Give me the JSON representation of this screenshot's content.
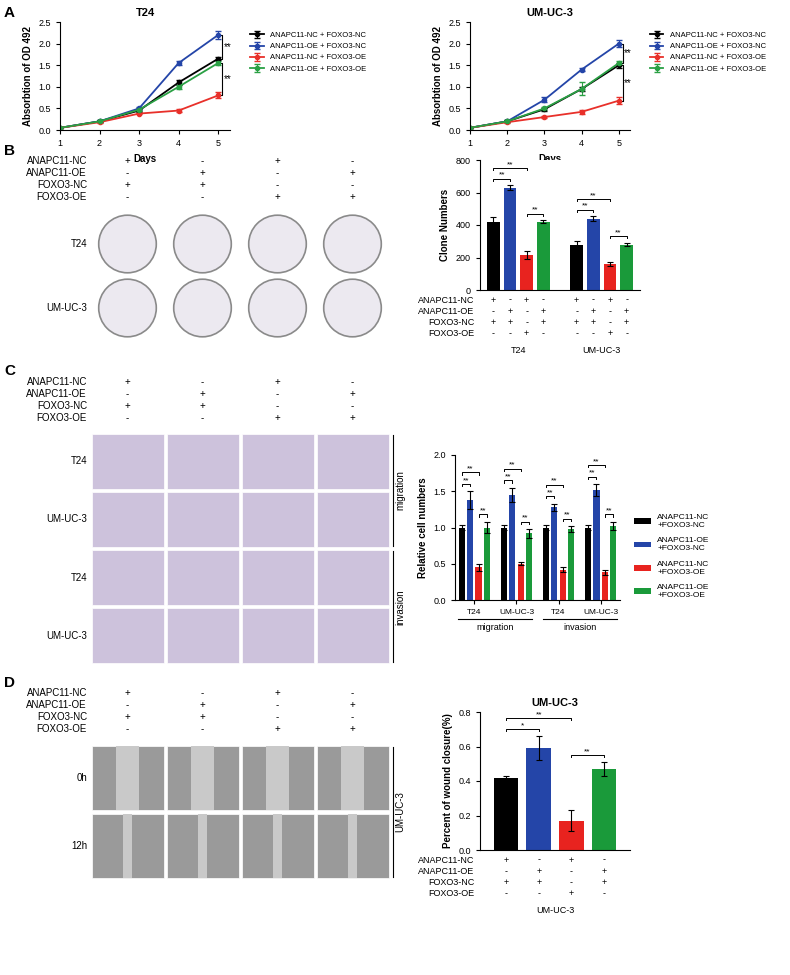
{
  "panel_labels": [
    "A",
    "B",
    "C",
    "D"
  ],
  "chart_data": [
    {
      "type": "line",
      "title": "T24",
      "x_label": "Days",
      "y_label": "Absorbtion of OD 492",
      "x": [
        1,
        2,
        3,
        4,
        5
      ],
      "xlim": [
        1,
        5.3
      ],
      "xticks": [
        1,
        2,
        3,
        4,
        5
      ],
      "ylim": [
        0,
        2.5
      ],
      "yticks": [
        {
          "value": 0,
          "label": "0.0"
        },
        0.5,
        {
          "value": 1,
          "label": "1.0"
        },
        1.5,
        {
          "value": 2,
          "label": "2.0"
        },
        2.5
      ],
      "marker": "circle",
      "legend": "right",
      "series": [
        {
          "name": "ANAPC11-NC + FOXO3-NC",
          "color": "#000000",
          "values": [
            0.05,
            0.2,
            0.45,
            1.1,
            1.65
          ],
          "errors": [
            0.01,
            0.02,
            0.03,
            0.05,
            0.04
          ]
        },
        {
          "name": "ANAPC11-OE + FOXO3-NC",
          "color": "#2445a8",
          "values": [
            0.05,
            0.2,
            0.5,
            1.55,
            2.2
          ],
          "errors": [
            0.01,
            0.02,
            0.03,
            0.04,
            0.1
          ]
        },
        {
          "name": "ANAPC11-NC + FOXO3-OE",
          "color": "#e8302a",
          "values": [
            0.05,
            0.18,
            0.38,
            0.45,
            0.8
          ],
          "errors": [
            0.01,
            0.02,
            0.02,
            0.03,
            0.07
          ]
        },
        {
          "name": "ANAPC11-OE + FOXO3-OE",
          "color": "#2aa044",
          "values": [
            0.05,
            0.2,
            0.47,
            1.0,
            1.55
          ],
          "errors": [
            0.01,
            0.02,
            0.03,
            0.04,
            0.05
          ]
        }
      ],
      "significance": [
        {
          "series": [
            1,
            0
          ],
          "label": "**"
        },
        {
          "series": [
            3,
            2
          ],
          "label": "**"
        }
      ]
    },
    {
      "type": "line",
      "title": "UM-UC-3",
      "x_label": "Days",
      "y_label": "Absorbtion of OD 492",
      "x": [
        1,
        2,
        3,
        4,
        5
      ],
      "xlim": [
        1,
        5.3
      ],
      "xticks": [
        1,
        2,
        3,
        4,
        5
      ],
      "ylim": [
        0,
        2.5
      ],
      "yticks": [
        {
          "value": 0,
          "label": "0.0"
        },
        0.5,
        {
          "value": 1,
          "label": "1.0"
        },
        1.5,
        {
          "value": 2,
          "label": "2.0"
        },
        2.5
      ],
      "marker": "circle",
      "legend": "right",
      "series": [
        {
          "name": "ANAPC11-NC + FOXO3-NC",
          "color": "#000000",
          "values": [
            0.05,
            0.2,
            0.48,
            0.95,
            1.5
          ],
          "errors": [
            0.01,
            0.02,
            0.03,
            0.05,
            0.06
          ]
        },
        {
          "name": "ANAPC11-OE + FOXO3-NC",
          "color": "#2445a8",
          "values": [
            0.05,
            0.2,
            0.7,
            1.4,
            2.0
          ],
          "errors": [
            0.01,
            0.02,
            0.06,
            0.04,
            0.08
          ]
        },
        {
          "name": "ANAPC11-NC + FOXO3-OE",
          "color": "#e8302a",
          "values": [
            0.05,
            0.18,
            0.3,
            0.42,
            0.68
          ],
          "errors": [
            0.01,
            0.02,
            0.02,
            0.05,
            0.08
          ]
        },
        {
          "name": "ANAPC11-OE + FOXO3-OE",
          "color": "#2aa044",
          "values": [
            0.05,
            0.2,
            0.5,
            0.95,
            1.55
          ],
          "errors": [
            0.01,
            0.02,
            0.03,
            0.15,
            0.05
          ]
        }
      ],
      "significance": [
        {
          "series": [
            1,
            3
          ],
          "label": "**"
        },
        {
          "series": [
            0,
            2
          ],
          "label": "**"
        }
      ]
    },
    {
      "type": "bar",
      "y_label": "Clone Numbers",
      "categories": [
        "T24",
        "UM-UC-3"
      ],
      "ylim": [
        0,
        800
      ],
      "yticks": [
        0,
        200,
        400,
        600,
        800
      ],
      "series": [
        {
          "color": "#000000",
          "values": [
            420,
            275
          ],
          "errors": [
            30,
            25
          ]
        },
        {
          "color": "#2445a8",
          "values": [
            630,
            440
          ],
          "errors": [
            15,
            15
          ]
        },
        {
          "color": "#e8231f",
          "values": [
            215,
            160
          ],
          "errors": [
            25,
            10
          ]
        },
        {
          "color": "#1a9a3a",
          "values": [
            420,
            280
          ],
          "errors": [
            10,
            12
          ]
        }
      ],
      "significance": [
        {
          "category": 0,
          "pair": [
            0,
            1
          ],
          "label": "**"
        },
        {
          "category": 0,
          "pair": [
            0,
            2
          ],
          "label": "**"
        },
        {
          "category": 0,
          "pair": [
            2,
            3
          ],
          "label": "**"
        },
        {
          "category": 1,
          "pair": [
            0,
            1
          ],
          "label": "**"
        },
        {
          "category": 1,
          "pair": [
            0,
            2
          ],
          "label": "**"
        },
        {
          "category": 1,
          "pair": [
            2,
            3
          ],
          "label": "**"
        }
      ],
      "condition_table": {
        "rows": [
          "ANAPC11-NC",
          "ANAPC11-OE",
          "FOXO3-NC",
          "FOXO3-OE"
        ],
        "cells": [
          [
            "+",
            "-",
            "+",
            "-",
            "+",
            "-",
            "+",
            "-"
          ],
          [
            "-",
            "+",
            "-",
            "+",
            "-",
            "+",
            "-",
            "+"
          ],
          [
            "+",
            "+",
            "-",
            "+",
            "+",
            "+",
            "-",
            "+"
          ],
          [
            "-",
            "-",
            "+",
            "-",
            "-",
            "-",
            "+",
            "-"
          ]
        ]
      }
    },
    {
      "type": "bar",
      "y_label": "Relative cell numbers",
      "categories": [
        "T24",
        "UM-UC-3",
        "T24",
        "UM-UC-3"
      ],
      "groups": [
        {
          "label": "migration",
          "categories": [
            0,
            1
          ]
        },
        {
          "label": "invasion",
          "categories": [
            2,
            3
          ]
        }
      ],
      "ylim": [
        0,
        2.0
      ],
      "yticks": [
        {
          "value": 0,
          "label": "0.0"
        },
        0.5,
        {
          "value": 1,
          "label": "1.0"
        },
        1.5,
        {
          "value": 2,
          "label": "2.0"
        }
      ],
      "legend": "right",
      "series": [
        {
          "name": "ANAPC11-NC\n+FOXO3-NC",
          "color": "#000000",
          "values": [
            1.0,
            1.0,
            1.0,
            1.0
          ],
          "errors": [
            0.04,
            0.04,
            0.04,
            0.04
          ]
        },
        {
          "name": "ANAPC11-OE\n+FOXO3-NC",
          "color": "#2445a8",
          "values": [
            1.38,
            1.45,
            1.28,
            1.52
          ],
          "errors": [
            0.12,
            0.1,
            0.05,
            0.08
          ]
        },
        {
          "name": "ANAPC11-NC\n+FOXO3-OE",
          "color": "#e8231f",
          "values": [
            0.45,
            0.5,
            0.42,
            0.38
          ],
          "errors": [
            0.05,
            0.02,
            0.03,
            0.04
          ]
        },
        {
          "name": "ANAPC11-OE\n+FOXO3-OE",
          "color": "#1a9a3a",
          "values": [
            1.0,
            0.92,
            0.98,
            1.02
          ],
          "errors": [
            0.08,
            0.06,
            0.04,
            0.06
          ]
        }
      ],
      "significance": [
        {
          "category": 0,
          "pair": [
            0,
            1
          ],
          "label": "**"
        },
        {
          "category": 0,
          "pair": [
            0,
            2
          ],
          "label": "**"
        },
        {
          "category": 0,
          "pair": [
            2,
            3
          ],
          "label": "**"
        },
        {
          "category": 1,
          "pair": [
            0,
            1
          ],
          "label": "**"
        },
        {
          "category": 1,
          "pair": [
            0,
            2
          ],
          "label": "**"
        },
        {
          "category": 1,
          "pair": [
            2,
            3
          ],
          "label": "**"
        },
        {
          "category": 2,
          "pair": [
            0,
            1
          ],
          "label": "**"
        },
        {
          "category": 2,
          "pair": [
            0,
            2
          ],
          "label": "**"
        },
        {
          "category": 2,
          "pair": [
            2,
            3
          ],
          "label": "**"
        },
        {
          "category": 3,
          "pair": [
            0,
            1
          ],
          "label": "**"
        },
        {
          "category": 3,
          "pair": [
            0,
            2
          ],
          "label": "**"
        },
        {
          "category": 3,
          "pair": [
            2,
            3
          ],
          "label": "**"
        }
      ]
    },
    {
      "type": "bar",
      "title": "UM-UC-3",
      "y_label": "Percent of wound closure(%)",
      "categories": [
        "UM-UC-3"
      ],
      "ylim": [
        0,
        0.8
      ],
      "yticks": [
        {
          "value": 0,
          "label": "0.0"
        },
        0.2,
        0.4,
        0.6,
        0.8
      ],
      "series": [
        {
          "color": "#000000",
          "values": [
            0.42
          ],
          "errors": [
            0.01
          ]
        },
        {
          "color": "#2445a8",
          "values": [
            0.59
          ],
          "errors": [
            0.07
          ]
        },
        {
          "color": "#e8231f",
          "values": [
            0.17
          ],
          "errors": [
            0.06
          ]
        },
        {
          "color": "#1a9a3a",
          "values": [
            0.47
          ],
          "errors": [
            0.04
          ]
        }
      ],
      "significance": [
        {
          "category": 0,
          "pair": [
            0,
            1
          ],
          "label": "*"
        },
        {
          "category": 0,
          "pair": [
            0,
            2
          ],
          "label": "**"
        },
        {
          "category": 0,
          "pair": [
            2,
            3
          ],
          "label": "**"
        }
      ],
      "condition_table": {
        "rows": [
          "ANAPC11-NC",
          "ANAPC11-OE",
          "FOXO3-NC",
          "FOXO3-OE"
        ],
        "cells": [
          [
            "+",
            "-",
            "+",
            "-"
          ],
          [
            "-",
            "+",
            "-",
            "+"
          ],
          [
            "+",
            "+",
            "-",
            "+"
          ],
          [
            "-",
            "-",
            "+",
            "-"
          ]
        ]
      }
    }
  ],
  "image_panels": [
    {
      "condition_table": {
        "rows": [
          "ANAPC11-NC",
          "ANAPC11-OE",
          "FOXO3-NC",
          "FOXO3-OE"
        ],
        "cells": [
          [
            "+",
            "-",
            "+",
            "-"
          ],
          [
            "-",
            "+",
            "-",
            "+"
          ],
          [
            "+",
            "+",
            "-",
            "-"
          ],
          [
            "-",
            "-",
            "+",
            "+"
          ]
        ]
      },
      "row_labels": [
        "T24",
        "UM-UC-3"
      ],
      "side_labels": []
    },
    {
      "condition_table": {
        "rows": [
          "ANAPC11-NC",
          "ANAPC11-OE",
          "FOXO3-NC",
          "FOXO3-OE"
        ],
        "cells": [
          [
            "+",
            "-",
            "+",
            "-"
          ],
          [
            "-",
            "+",
            "-",
            "+"
          ],
          [
            "+",
            "+",
            "-",
            "-"
          ],
          [
            "-",
            "-",
            "+",
            "+"
          ]
        ]
      },
      "row_labels": [
        "T24",
        "UM-UC-3",
        "T24",
        "UM-UC-3"
      ],
      "side_labels": [
        {
          "label": "migration",
          "rows": [
            0,
            1
          ]
        },
        {
          "label": "invasion",
          "rows": [
            2,
            3
          ]
        }
      ]
    },
    {
      "condition_table": {
        "rows": [
          "ANAPC11-NC",
          "ANAPC11-OE",
          "FOXO3-NC",
          "FOXO3-OE"
        ],
        "cells": [
          [
            "+",
            "-",
            "+",
            "-"
          ],
          [
            "-",
            "+",
            "-",
            "+"
          ],
          [
            "+",
            "+",
            "-",
            "-"
          ],
          [
            "-",
            "-",
            "+",
            "+"
          ]
        ]
      },
      "row_labels": [
        "0h",
        "12h"
      ],
      "side_labels": [
        {
          "label": "UM-UC-3",
          "rows": [
            0,
            1
          ]
        }
      ]
    }
  ]
}
